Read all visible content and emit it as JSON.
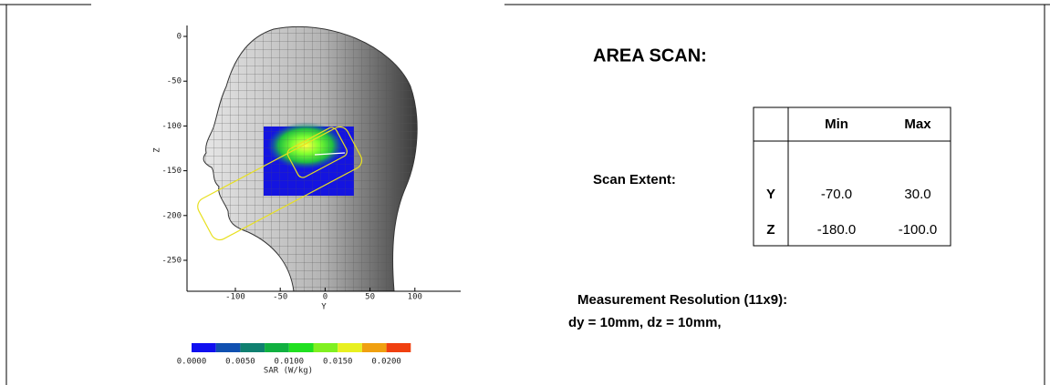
{
  "figure": {
    "z_ticks": [
      "0",
      "-50",
      "-100",
      "-150",
      "-200",
      "-250"
    ],
    "y_ticks": [
      "-100",
      "-50",
      "0",
      "50",
      "100"
    ],
    "z_axis_label": "Z",
    "y_axis_label": "Y",
    "colorbar": {
      "ticks": [
        "0.0000",
        "0.0050",
        "0.0100",
        "0.0150",
        "0.0200"
      ],
      "label": "SAR (W/kg)"
    }
  },
  "heading": "AREA SCAN:",
  "scan_extent": {
    "label": "Scan Extent:",
    "columns": [
      "Min",
      "Max"
    ],
    "rows": [
      [
        "Y",
        "-70.0",
        "30.0"
      ],
      [
        "Z",
        "-180.0",
        "-100.0"
      ]
    ]
  },
  "resolution": {
    "title": "Measurement Resolution (11x9):",
    "detail": "dy = 10mm, dz = 10mm,"
  }
}
